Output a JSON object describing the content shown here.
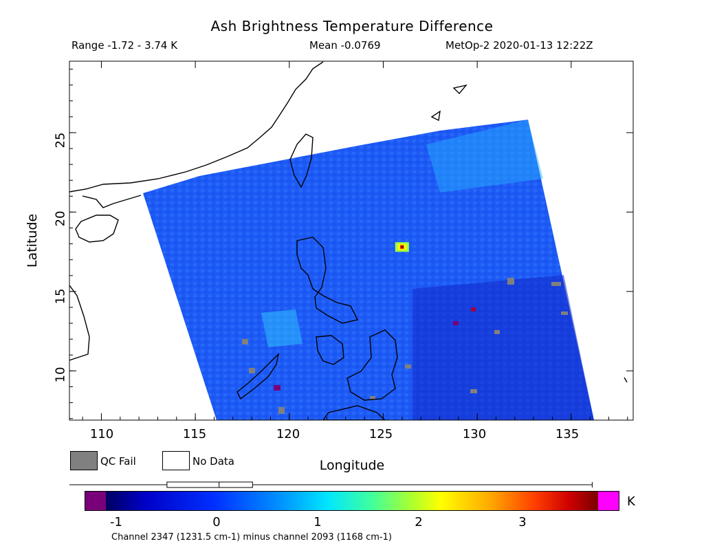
{
  "header": {
    "title": "Ash Brightness Temperature Difference",
    "range": "Range -1.72 - 3.74 K",
    "mean": "Mean -0.0769",
    "satellite_time": "MetOp-2 2020-01-13 12:22Z"
  },
  "map": {
    "lon_range": [
      108.3,
      138.3
    ],
    "lat_range": [
      6.9,
      29.5
    ],
    "x_ticks": [
      "110",
      "115",
      "120",
      "125",
      "130",
      "135"
    ],
    "y_ticks": [
      "25",
      "20",
      "15",
      "10"
    ],
    "xlabel": "Longitude",
    "ylabel": "Latitude",
    "swath_color": "#1e5af5",
    "hotspot": {
      "lon": 126.0,
      "lat": 17.8,
      "value": 3.4
    }
  },
  "legend": {
    "qc_fail_label": "QC Fail",
    "qc_fail_color": "#808080",
    "no_data_label": "No Data",
    "no_data_color": "#ffffff"
  },
  "colorbar": {
    "min": -1.2,
    "max": 3.8,
    "ticks": [
      "-1",
      "0",
      "1",
      "2",
      "3"
    ],
    "tick_values": [
      -1,
      0,
      1,
      2,
      3
    ],
    "unit": "K",
    "under_color": "#7a007a",
    "over_color": "#ff00ff",
    "caption": "Channel 2347 (1231.5 cm-1) minus channel 2093 (1168 cm-1)",
    "boxplot": {
      "whisker_min": -1.45,
      "q1": -0.3,
      "median": -0.05,
      "q3": 0.15,
      "whisker_max": 3.74
    }
  }
}
